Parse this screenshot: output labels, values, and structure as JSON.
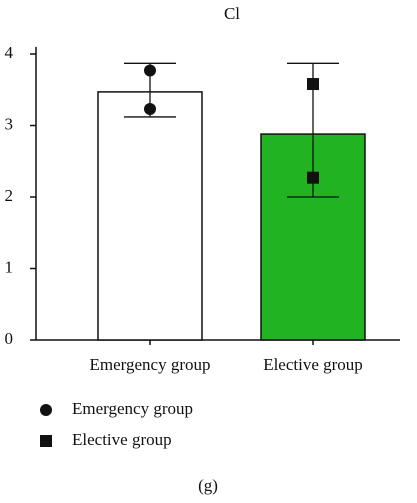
{
  "chart_data": {
    "type": "bar",
    "title": "Cl",
    "categories": [
      "Emergency group",
      "Elective group"
    ],
    "values": [
      3.47,
      2.88
    ],
    "colors": [
      "#ffffff",
      "#22b322"
    ],
    "whisker_low": [
      3.12,
      2.0
    ],
    "whisker_high": [
      3.87,
      3.87
    ],
    "points": [
      [
        3.77,
        3.23
      ],
      [
        3.58,
        2.27
      ]
    ],
    "markers": [
      "circle",
      "square"
    ],
    "legend": [
      "Emergency group",
      "Elective group"
    ],
    "ylim": [
      0,
      4.1
    ],
    "yticks": [
      0,
      1,
      2,
      3,
      4
    ],
    "caption": "(g)"
  }
}
